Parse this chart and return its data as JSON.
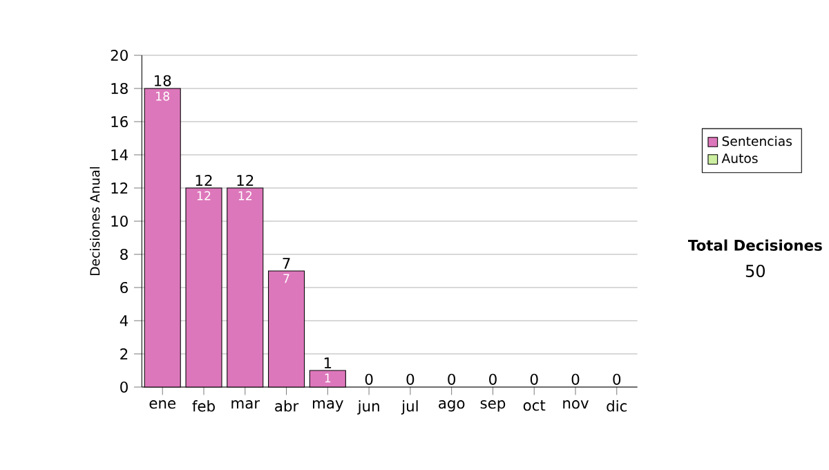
{
  "chart_data": {
    "type": "bar",
    "stacked": true,
    "ylabel": "Decisiones Anual",
    "categories": [
      "ene",
      "feb",
      "mar",
      "abr",
      "may",
      "jun",
      "jul",
      "ago",
      "sep",
      "oct",
      "nov",
      "dic"
    ],
    "series": [
      {
        "name": "Sentencias",
        "color": "#dd77bb",
        "values": [
          18,
          12,
          12,
          7,
          1,
          0,
          0,
          0,
          0,
          0,
          0,
          0
        ],
        "value_labels": [
          "18",
          "12",
          "12",
          "7",
          "1",
          null,
          null,
          null,
          null,
          null,
          null,
          null
        ]
      },
      {
        "name": "Autos",
        "color": "#cceea0",
        "values": [
          0,
          0,
          0,
          0,
          0,
          0,
          0,
          0,
          0,
          0,
          0,
          0
        ]
      }
    ],
    "totals": [
      "18",
      "12",
      "12",
      "7",
      "1",
      "0",
      "0",
      "0",
      "0",
      "0",
      "0",
      "0"
    ],
    "ylim": [
      0,
      20
    ],
    "yticks": [
      0,
      2,
      4,
      6,
      8,
      10,
      12,
      14,
      16,
      18,
      20
    ],
    "grid": "y",
    "legend": "right",
    "annotations": [
      "Total Decisiones",
      "50"
    ]
  }
}
